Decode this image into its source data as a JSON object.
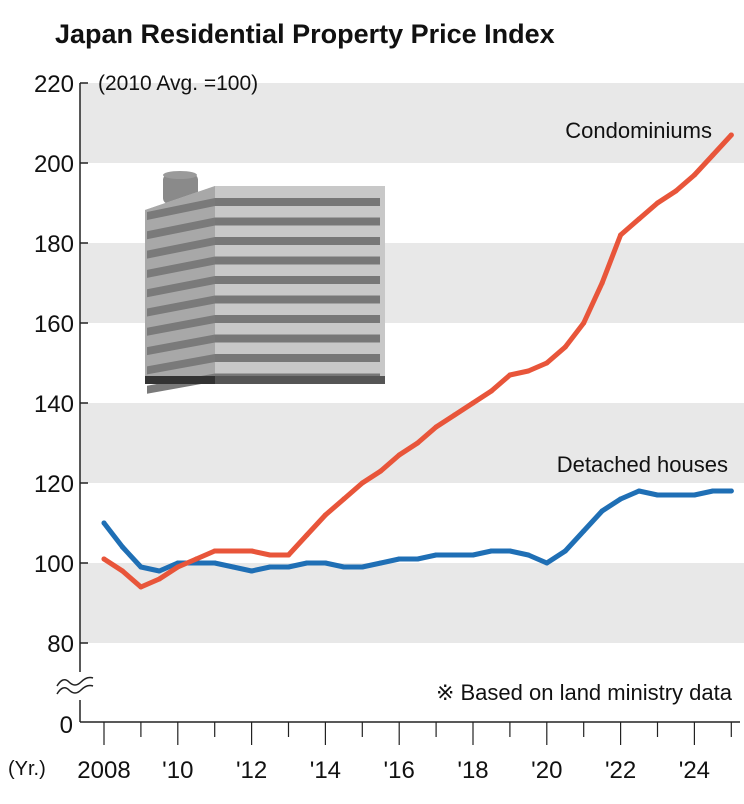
{
  "chart_data": {
    "type": "line",
    "title": "Japan Residential Property Price Index",
    "unit_note": "(2010 Avg. =100)",
    "source_note": "※ Based on land ministry data",
    "x_unit_label": "(Yr.)",
    "x_ticks": [
      2008,
      2010,
      2012,
      2014,
      2016,
      2018,
      2020,
      2022,
      2024
    ],
    "x_tick_labels": [
      "2008",
      "'10",
      "'12",
      "'14",
      "'16",
      "'18",
      "'20",
      "'22",
      "'24"
    ],
    "xlim": [
      2007.9,
      2025.3
    ],
    "y_ticks": [
      80,
      100,
      120,
      140,
      160,
      180,
      200,
      220
    ],
    "y_tick_labels": [
      "80",
      "100",
      "120",
      "140",
      "160",
      "180",
      "200",
      "220"
    ],
    "y_zero_label": "0",
    "ylim": [
      80,
      220
    ],
    "y_axis_break": true,
    "grid_bands": [
      [
        80,
        100
      ],
      [
        120,
        140
      ],
      [
        160,
        180
      ],
      [
        200,
        220
      ]
    ],
    "colors": {
      "condominiums": "#e8553a",
      "detached": "#1f6fb5",
      "band": "#e8e8e8"
    },
    "x": [
      2008,
      2008.5,
      2009,
      2009.5,
      2010,
      2010.5,
      2011,
      2011.5,
      2012,
      2012.5,
      2013,
      2013.5,
      2014,
      2014.5,
      2015,
      2015.5,
      2016,
      2016.5,
      2017,
      2017.5,
      2018,
      2018.5,
      2019,
      2019.5,
      2020,
      2020.5,
      2021,
      2021.5,
      2022,
      2022.5,
      2023,
      2023.5,
      2024,
      2024.5,
      2025
    ],
    "series": [
      {
        "name": "Condominiums",
        "values": [
          101,
          98,
          94,
          96,
          99,
          101,
          103,
          103,
          103,
          102,
          102,
          107,
          112,
          116,
          120,
          123,
          127,
          130,
          134,
          137,
          140,
          143,
          147,
          148,
          150,
          154,
          160,
          170,
          182,
          186,
          190,
          193,
          197,
          202,
          207
        ]
      },
      {
        "name": "Detached houses",
        "values": [
          110,
          104,
          99,
          98,
          100,
          100,
          100,
          99,
          98,
          99,
          99,
          100,
          100,
          99,
          99,
          100,
          101,
          101,
          102,
          102,
          102,
          103,
          103,
          102,
          100,
          103,
          108,
          113,
          116,
          118,
          117,
          117,
          117,
          118,
          118
        ]
      }
    ]
  }
}
